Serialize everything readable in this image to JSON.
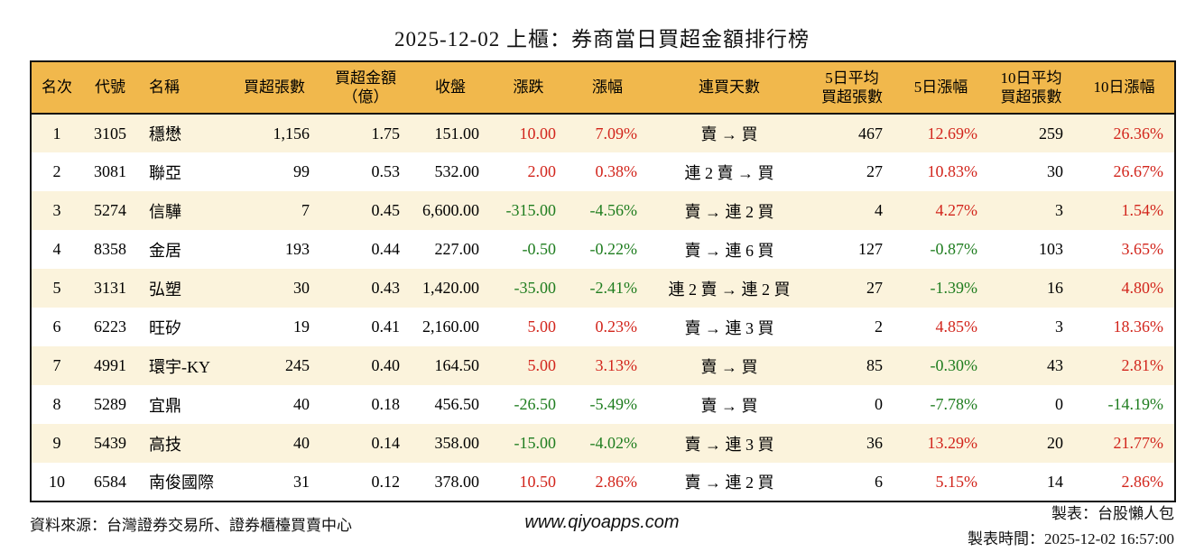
{
  "title": "2025-12-02 上櫃：券商當日買超金額排行榜",
  "colors": {
    "header_bg": "#f1b84c",
    "row_alt_bg": "#fbf3dc",
    "up_red": "#d2251c",
    "down_green": "#1f7d1f",
    "border": "#111111"
  },
  "table": {
    "columns": [
      {
        "key": "rank",
        "label": "名次",
        "align": "center",
        "signed": false
      },
      {
        "key": "code",
        "label": "代號",
        "align": "center",
        "signed": false
      },
      {
        "key": "name",
        "label": "名稱",
        "align": "left",
        "signed": false
      },
      {
        "key": "volume",
        "label": "買超張數",
        "align": "right",
        "signed": false
      },
      {
        "key": "amount",
        "label": "買超金額\n（億）",
        "align": "right",
        "signed": false
      },
      {
        "key": "close",
        "label": "收盤",
        "align": "right",
        "signed": false
      },
      {
        "key": "change",
        "label": "漲跌",
        "align": "right",
        "signed": true
      },
      {
        "key": "change_pct",
        "label": "漲幅",
        "align": "right",
        "signed": true
      },
      {
        "key": "streak",
        "label": "連買天數",
        "align": "center",
        "signed": false
      },
      {
        "key": "avg5",
        "label": "5日平均\n買超張數",
        "align": "right",
        "signed": false
      },
      {
        "key": "pct5",
        "label": "5日漲幅",
        "align": "right",
        "signed": true
      },
      {
        "key": "avg10",
        "label": "10日平均\n買超張數",
        "align": "right",
        "signed": false
      },
      {
        "key": "pct10",
        "label": "10日漲幅",
        "align": "right",
        "signed": true
      }
    ],
    "rows": [
      {
        "rank": "1",
        "code": "3105",
        "name": "穩懋",
        "volume": "1,156",
        "amount": "1.75",
        "close": "151.00",
        "change": "10.00",
        "change_pct": "7.09%",
        "streak": "賣 → 買",
        "avg5": "467",
        "pct5": "12.69%",
        "avg10": "259",
        "pct10": "26.36%"
      },
      {
        "rank": "2",
        "code": "3081",
        "name": "聯亞",
        "volume": "99",
        "amount": "0.53",
        "close": "532.00",
        "change": "2.00",
        "change_pct": "0.38%",
        "streak": "連 2 賣 → 買",
        "avg5": "27",
        "pct5": "10.83%",
        "avg10": "30",
        "pct10": "26.67%"
      },
      {
        "rank": "3",
        "code": "5274",
        "name": "信驊",
        "volume": "7",
        "amount": "0.45",
        "close": "6,600.00",
        "change": "-315.00",
        "change_pct": "-4.56%",
        "streak": "賣 → 連 2 買",
        "avg5": "4",
        "pct5": "4.27%",
        "avg10": "3",
        "pct10": "1.54%"
      },
      {
        "rank": "4",
        "code": "8358",
        "name": "金居",
        "volume": "193",
        "amount": "0.44",
        "close": "227.00",
        "change": "-0.50",
        "change_pct": "-0.22%",
        "streak": "賣 → 連 6 買",
        "avg5": "127",
        "pct5": "-0.87%",
        "avg10": "103",
        "pct10": "3.65%"
      },
      {
        "rank": "5",
        "code": "3131",
        "name": "弘塑",
        "volume": "30",
        "amount": "0.43",
        "close": "1,420.00",
        "change": "-35.00",
        "change_pct": "-2.41%",
        "streak": "連 2 賣 → 連 2 買",
        "avg5": "27",
        "pct5": "-1.39%",
        "avg10": "16",
        "pct10": "4.80%"
      },
      {
        "rank": "6",
        "code": "6223",
        "name": "旺矽",
        "volume": "19",
        "amount": "0.41",
        "close": "2,160.00",
        "change": "5.00",
        "change_pct": "0.23%",
        "streak": "賣 → 連 3 買",
        "avg5": "2",
        "pct5": "4.85%",
        "avg10": "3",
        "pct10": "18.36%"
      },
      {
        "rank": "7",
        "code": "4991",
        "name": "環宇-KY",
        "volume": "245",
        "amount": "0.40",
        "close": "164.50",
        "change": "5.00",
        "change_pct": "3.13%",
        "streak": "賣 → 買",
        "avg5": "85",
        "pct5": "-0.30%",
        "avg10": "43",
        "pct10": "2.81%"
      },
      {
        "rank": "8",
        "code": "5289",
        "name": "宜鼎",
        "volume": "40",
        "amount": "0.18",
        "close": "456.50",
        "change": "-26.50",
        "change_pct": "-5.49%",
        "streak": "賣 → 買",
        "avg5": "0",
        "pct5": "-7.78%",
        "avg10": "0",
        "pct10": "-14.19%"
      },
      {
        "rank": "9",
        "code": "5439",
        "name": "高技",
        "volume": "40",
        "amount": "0.14",
        "close": "358.00",
        "change": "-15.00",
        "change_pct": "-4.02%",
        "streak": "賣 → 連 3 買",
        "avg5": "36",
        "pct5": "13.29%",
        "avg10": "20",
        "pct10": "21.77%"
      },
      {
        "rank": "10",
        "code": "6584",
        "name": "南俊國際",
        "volume": "31",
        "amount": "0.12",
        "close": "378.00",
        "change": "10.50",
        "change_pct": "2.86%",
        "streak": "賣 → 連 2 買",
        "avg5": "6",
        "pct5": "5.15%",
        "avg10": "14",
        "pct10": "2.86%"
      }
    ]
  },
  "footer": {
    "source": "資料來源：台灣證券交易所、證券櫃檯買賣中心",
    "url": "www.qiyoapps.com",
    "made_by": "製表：台股懶人包",
    "made_time": "製表時間：2025-12-02 16:57:00"
  }
}
